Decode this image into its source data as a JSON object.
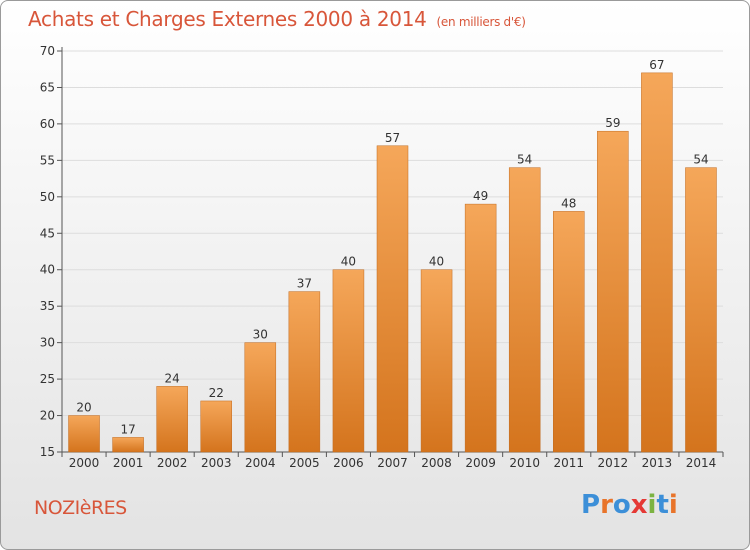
{
  "title": "Achats et Charges Externes 2000 à 2014",
  "subtitle": "(en milliers d'€)",
  "commune": "NOZIèRES",
  "logo": {
    "text": "Proxiti",
    "letters": [
      {
        "ch": "P",
        "color": "#3c8fd8"
      },
      {
        "ch": "r",
        "color": "#e8742a"
      },
      {
        "ch": "o",
        "color": "#3c8fd8"
      },
      {
        "ch": "x",
        "color": "#e53935"
      },
      {
        "ch": "i",
        "color": "#7cb342"
      },
      {
        "ch": "t",
        "color": "#3c8fd8"
      },
      {
        "ch": "i",
        "color": "#e8742a"
      }
    ]
  },
  "colors": {
    "bar_top": "#f5a75a",
    "bar_bottom": "#d4741d",
    "bar_edge": "#c06a1e",
    "text": "#d8563a",
    "axis_text": "#333333",
    "grid": "#dddddd"
  },
  "chart_data": {
    "type": "bar",
    "categories": [
      "2000",
      "2001",
      "2002",
      "2003",
      "2004",
      "2005",
      "2006",
      "2007",
      "2008",
      "2009",
      "2010",
      "2011",
      "2012",
      "2013",
      "2014"
    ],
    "values": [
      20,
      17,
      24,
      22,
      30,
      37,
      40,
      57,
      40,
      49,
      54,
      48,
      59,
      67,
      54
    ],
    "data_labels": [
      "20",
      "17",
      "24",
      "22",
      "30",
      "37",
      "40",
      "57",
      "40",
      "49",
      "54",
      "48",
      "59",
      "67",
      "54"
    ],
    "yticks": [
      15,
      20,
      25,
      30,
      35,
      40,
      45,
      50,
      55,
      60,
      65,
      70
    ],
    "ylim": [
      15,
      70
    ],
    "grid": true
  }
}
